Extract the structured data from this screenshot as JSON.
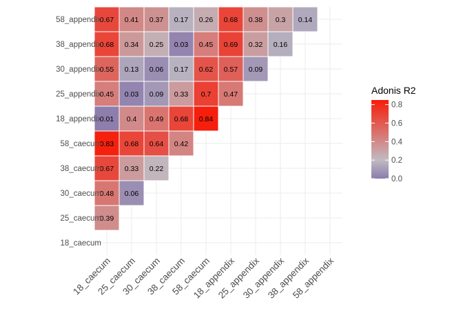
{
  "chart_data": {
    "type": "heatmap",
    "x_categories": [
      "18_caecum",
      "25_caecum",
      "30_caecum",
      "38_caecum",
      "58_caecum",
      "18_appendix",
      "25_appendix",
      "30_appendix",
      "38_appendix",
      "58_appendix"
    ],
    "y_categories": [
      "18_caecum",
      "25_caecum",
      "30_caecum",
      "38_caecum",
      "58_caecum",
      "18_appendix",
      "25_appendix",
      "30_appendix",
      "38_appendix",
      "58_appendix"
    ],
    "cells": [
      {
        "x": "18_caecum",
        "y": "25_caecum",
        "value": 0.39
      },
      {
        "x": "18_caecum",
        "y": "30_caecum",
        "value": 0.48
      },
      {
        "x": "18_caecum",
        "y": "38_caecum",
        "value": 0.67
      },
      {
        "x": "18_caecum",
        "y": "58_caecum",
        "value": 0.83
      },
      {
        "x": "18_caecum",
        "y": "18_appendix",
        "value": 0.01
      },
      {
        "x": "18_caecum",
        "y": "25_appendix",
        "value": 0.45
      },
      {
        "x": "18_caecum",
        "y": "30_appendix",
        "value": 0.55
      },
      {
        "x": "18_caecum",
        "y": "38_appendix",
        "value": 0.68
      },
      {
        "x": "18_caecum",
        "y": "58_appendix",
        "value": 0.67
      },
      {
        "x": "25_caecum",
        "y": "30_caecum",
        "value": 0.06
      },
      {
        "x": "25_caecum",
        "y": "38_caecum",
        "value": 0.33
      },
      {
        "x": "25_caecum",
        "y": "58_caecum",
        "value": 0.68
      },
      {
        "x": "25_caecum",
        "y": "18_appendix",
        "value": 0.4
      },
      {
        "x": "25_caecum",
        "y": "25_appendix",
        "value": 0.03
      },
      {
        "x": "25_caecum",
        "y": "30_appendix",
        "value": 0.13
      },
      {
        "x": "25_caecum",
        "y": "38_appendix",
        "value": 0.34
      },
      {
        "x": "25_caecum",
        "y": "58_appendix",
        "value": 0.41
      },
      {
        "x": "30_caecum",
        "y": "38_caecum",
        "value": 0.22
      },
      {
        "x": "30_caecum",
        "y": "58_caecum",
        "value": 0.64
      },
      {
        "x": "30_caecum",
        "y": "18_appendix",
        "value": 0.49
      },
      {
        "x": "30_caecum",
        "y": "25_appendix",
        "value": 0.09
      },
      {
        "x": "30_caecum",
        "y": "30_appendix",
        "value": 0.06
      },
      {
        "x": "30_caecum",
        "y": "38_appendix",
        "value": 0.25
      },
      {
        "x": "30_caecum",
        "y": "58_appendix",
        "value": 0.37
      },
      {
        "x": "38_caecum",
        "y": "58_caecum",
        "value": 0.42
      },
      {
        "x": "38_caecum",
        "y": "18_appendix",
        "value": 0.68
      },
      {
        "x": "38_caecum",
        "y": "25_appendix",
        "value": 0.33
      },
      {
        "x": "38_caecum",
        "y": "30_appendix",
        "value": 0.17
      },
      {
        "x": "38_caecum",
        "y": "38_appendix",
        "value": 0.03
      },
      {
        "x": "38_caecum",
        "y": "58_appendix",
        "value": 0.17
      },
      {
        "x": "58_caecum",
        "y": "18_appendix",
        "value": 0.84
      },
      {
        "x": "58_caecum",
        "y": "25_appendix",
        "value": 0.7
      },
      {
        "x": "58_caecum",
        "y": "30_appendix",
        "value": 0.62
      },
      {
        "x": "58_caecum",
        "y": "38_appendix",
        "value": 0.45
      },
      {
        "x": "58_caecum",
        "y": "58_appendix",
        "value": 0.26
      },
      {
        "x": "18_appendix",
        "y": "25_appendix",
        "value": 0.47
      },
      {
        "x": "18_appendix",
        "y": "30_appendix",
        "value": 0.57
      },
      {
        "x": "18_appendix",
        "y": "38_appendix",
        "value": 0.69
      },
      {
        "x": "18_appendix",
        "y": "58_appendix",
        "value": 0.68
      },
      {
        "x": "25_appendix",
        "y": "30_appendix",
        "value": 0.09
      },
      {
        "x": "25_appendix",
        "y": "38_appendix",
        "value": 0.32
      },
      {
        "x": "25_appendix",
        "y": "58_appendix",
        "value": 0.38
      },
      {
        "x": "30_appendix",
        "y": "38_appendix",
        "value": 0.16
      },
      {
        "x": "30_appendix",
        "y": "58_appendix",
        "value": 0.3
      },
      {
        "x": "38_appendix",
        "y": "58_appendix",
        "value": 0.14
      }
    ],
    "colorbar": {
      "title": "Adonis R2",
      "ticks": [
        "0.0",
        "0.2",
        "0.4",
        "0.6",
        "0.8"
      ],
      "tick_values": [
        0,
        0.2,
        0.4,
        0.6,
        0.8
      ],
      "range": [
        0,
        0.85
      ],
      "low_color": "#8B7BAD",
      "mid_color": "#C0BBC2",
      "high_color": "#F71C09"
    },
    "title": "",
    "xlabel": "",
    "ylabel": "",
    "grid": true,
    "legend_position": "right"
  }
}
